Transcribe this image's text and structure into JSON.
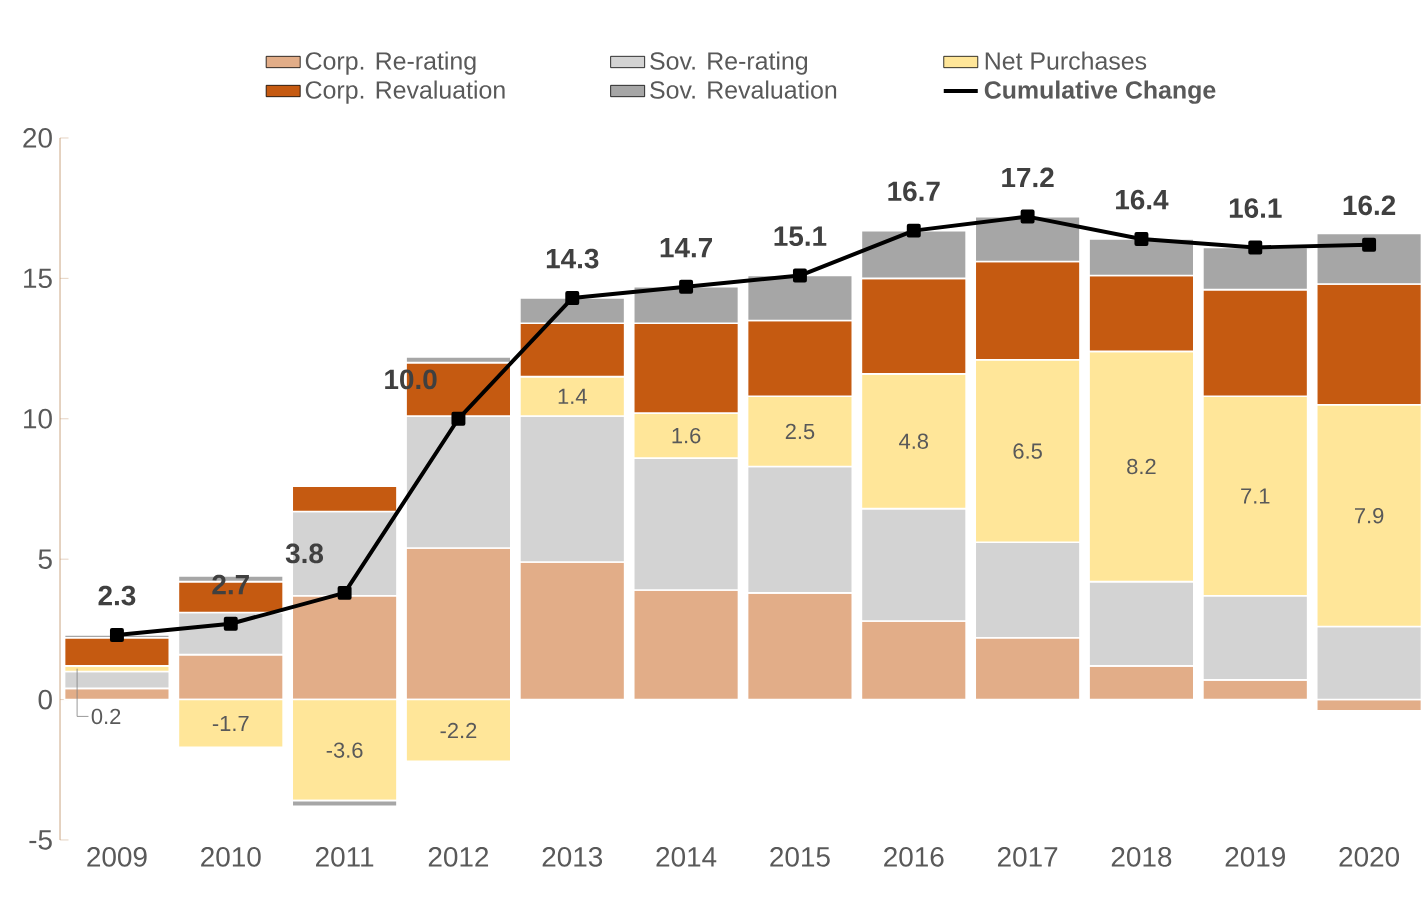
{
  "chart_data": {
    "type": "bar",
    "stacked": true,
    "categories": [
      "2009",
      "2010",
      "2011",
      "2012",
      "2013",
      "2014",
      "2015",
      "2016",
      "2017",
      "2018",
      "2019",
      "2020"
    ],
    "series": [
      {
        "name": "Corp. Re-rating",
        "color": "#e2ad88",
        "values": [
          0.4,
          1.6,
          3.7,
          5.4,
          4.9,
          3.9,
          3.8,
          2.8,
          2.2,
          1.2,
          0.7,
          -0.4
        ]
      },
      {
        "name": "Sov. Re-rating",
        "color": "#d3d3d3",
        "values": [
          0.6,
          1.5,
          3.0,
          4.7,
          5.2,
          4.7,
          4.5,
          4.0,
          3.4,
          3.0,
          3.0,
          2.6
        ]
      },
      {
        "name": "Net Purchases",
        "color": "#ffe699",
        "values": [
          0.2,
          -1.7,
          -3.6,
          -2.2,
          1.4,
          1.6,
          2.5,
          4.8,
          6.5,
          8.2,
          7.1,
          7.9
        ],
        "value_labels": [
          "0.2",
          "-1.7",
          "-3.6",
          "-2.2",
          "1.4",
          "1.6",
          "2.5",
          "4.8",
          "6.5",
          "8.2",
          "7.1",
          "7.9"
        ]
      },
      {
        "name": "Corp. Revaluation",
        "color": "#c55a11",
        "values": [
          1.0,
          1.1,
          0.9,
          1.9,
          1.9,
          3.2,
          2.7,
          3.4,
          3.5,
          2.7,
          3.8,
          4.3
        ]
      },
      {
        "name": "Sov. Revaluation",
        "color": "#a6a6a6",
        "values": [
          0.1,
          0.2,
          -0.2,
          0.2,
          0.9,
          1.3,
          1.6,
          1.7,
          1.6,
          1.3,
          1.5,
          1.8
        ]
      },
      {
        "name": "Cumulative Change",
        "type": "line",
        "color": "#000000",
        "marker": "square",
        "values": [
          2.3,
          2.7,
          3.8,
          10.0,
          14.3,
          14.7,
          15.1,
          16.7,
          17.2,
          16.4,
          16.1,
          16.2
        ],
        "value_labels": [
          "2.3",
          "2.7",
          "3.8",
          "10.0",
          "14.3",
          "14.7",
          "15.1",
          "16.7",
          "17.2",
          "16.4",
          "16.1",
          "16.2"
        ]
      }
    ],
    "ylim": [
      -5,
      20
    ],
    "yticks": [
      -5,
      0,
      5,
      10,
      15,
      20
    ],
    "grid": false,
    "legend": "top"
  }
}
